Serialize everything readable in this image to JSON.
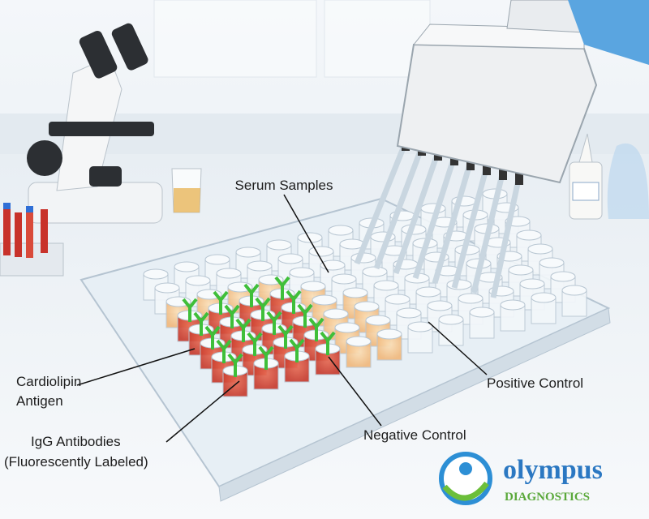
{
  "labels": {
    "serum_samples": "Serum Samples",
    "cardiolipin_antigen": [
      "Cardiolipin",
      "Antigen"
    ],
    "igg_antibodies": [
      "IgG Antibodies",
      "(Fluorescently Labeled)"
    ],
    "negative_control": "Negative Control",
    "positive_control": "Positive Control"
  },
  "logo": {
    "name": "olympus",
    "tagline": "DIAGNOSTICS"
  }
}
